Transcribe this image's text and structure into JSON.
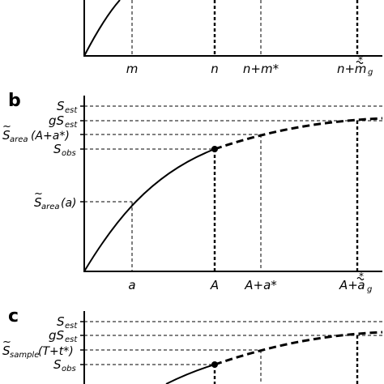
{
  "panel_a": {
    "x_ticks": {
      "m": "m",
      "n": "n",
      "n_plus_m": "n+m*",
      "n_plus_mg_base": "n+",
      "n_plus_mg_m": "m",
      "n_plus_mg_sup": "*",
      "n_plus_mg_sub": "g"
    }
  },
  "panel_b": {
    "letter": "b",
    "y_labels": {
      "s_est_base": "S",
      "s_est_sub": "est",
      "gs_est_base": "gS",
      "gs_est_sub": "est",
      "s_area_tilde": "~",
      "s_area_base": "S",
      "s_area_sub": "area",
      "s_area_arg": "(A+a*)",
      "s_obs_base": "S",
      "s_obs_sub": "obs",
      "s_area_a_tilde": "~",
      "s_area_a_base": "S",
      "s_area_a_sub": "area",
      "s_area_a_arg": "(a)"
    },
    "x_ticks": {
      "a": "a",
      "A": "A",
      "A_plus_a": "A+a*",
      "A_plus_ag_base": "A+",
      "A_plus_ag_a": "a",
      "A_plus_ag_sup": "*",
      "A_plus_ag_sub": "g"
    }
  },
  "panel_c": {
    "letter": "c",
    "y_labels": {
      "s_est_base": "S",
      "s_est_sub": "est",
      "gs_est_base": "gS",
      "gs_est_sub": "est",
      "s_sample_tilde": "~",
      "s_sample_base": "S",
      "s_sample_sub": "sample",
      "s_sample_arg": "(T+t*)",
      "s_obs_base": "S",
      "s_obs_sub": "obs"
    }
  }
}
